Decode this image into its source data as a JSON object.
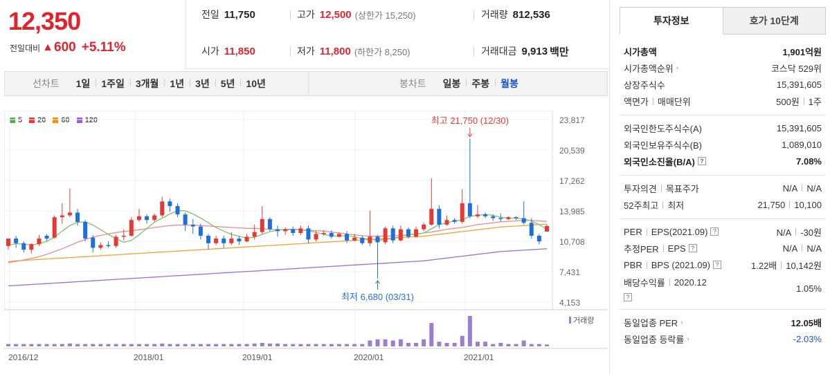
{
  "summary": {
    "price": "12,350",
    "change_label": "전일대비",
    "change_arrow": "▲",
    "change_value": "600",
    "change_pct": "+5.11%"
  },
  "info": {
    "prev_label": "전일",
    "prev_val": "11,750",
    "high_label": "고가",
    "high_val": "12,500",
    "high_sub": "(상한가 15,250)",
    "vol_label": "거래량",
    "vol_val": "812,536",
    "open_label": "시가",
    "open_val": "11,850",
    "low_label": "저가",
    "low_val": "11,800",
    "low_sub": "(하한가 8,250)",
    "amt_label": "거래대금",
    "amt_val": "9,913",
    "amt_unit": "백만"
  },
  "toolbar": {
    "line_title": "선차트",
    "line_items": [
      "1일",
      "1주일",
      "3개월",
      "1년",
      "3년",
      "5년",
      "10년"
    ],
    "candle_title": "봉차트",
    "candle_items": [
      "일봉",
      "주봉",
      "월봉"
    ],
    "candle_active": 2
  },
  "legend": [
    {
      "label": "5",
      "color": "#4caf50"
    },
    {
      "label": "20",
      "color": "#e53935"
    },
    {
      "label": "60",
      "color": "#fb8c00"
    },
    {
      "label": "120",
      "color": "#9c5ad6"
    }
  ],
  "chart_data": {
    "type": "candlestick",
    "y_ticks": [
      "23,817",
      "20,539",
      "17,262",
      "13,985",
      "10,708",
      "7,431",
      "4,153"
    ],
    "x_ticks": [
      "2016/12",
      "2018/01",
      "2019/01",
      "2020/01",
      "2021/01"
    ],
    "volume_label": "거래량",
    "max_label": "최고 21,750 (12/30)",
    "min_label": "최저 6,680 (03/31)",
    "candles": [
      [
        10200,
        11000,
        9800,
        11000
      ],
      [
        11000,
        10500,
        10000,
        11300
      ],
      [
        10500,
        9800,
        9500,
        10700
      ],
      [
        9800,
        10400,
        9400,
        10500
      ],
      [
        10400,
        11000,
        10200,
        11400
      ],
      [
        11300,
        11000,
        10700,
        11500
      ],
      [
        11100,
        13300,
        11000,
        13500
      ],
      [
        13300,
        13500,
        12600,
        14800
      ],
      [
        13500,
        13800,
        13300,
        16400
      ],
      [
        13800,
        12800,
        12400,
        14200
      ],
      [
        12800,
        11000,
        10700,
        13000
      ],
      [
        11100,
        10000,
        9500,
        11400
      ],
      [
        10000,
        10300,
        9800,
        10600
      ],
      [
        10300,
        10200,
        10000,
        10700
      ],
      [
        10200,
        11200,
        10000,
        11400
      ],
      [
        11200,
        11300,
        10800,
        12000
      ],
      [
        11300,
        13000,
        11200,
        13300
      ],
      [
        13000,
        13400,
        12800,
        14200
      ],
      [
        13400,
        13000,
        12600,
        13600
      ],
      [
        13000,
        13500,
        12800,
        13700
      ],
      [
        13500,
        15000,
        13300,
        15500
      ],
      [
        15000,
        14500,
        13900,
        15300
      ],
      [
        14500,
        13600,
        13300,
        14800
      ],
      [
        13600,
        12500,
        11800,
        13800
      ],
      [
        12500,
        12300,
        11500,
        13100
      ],
      [
        12300,
        11300,
        10900,
        12600
      ],
      [
        11300,
        10500,
        9800,
        11500
      ],
      [
        10500,
        11000,
        10300,
        11300
      ],
      [
        11000,
        10500,
        10000,
        11300
      ],
      [
        10500,
        11000,
        10300,
        11700
      ],
      [
        11000,
        10700,
        10300,
        11300
      ],
      [
        10700,
        11200,
        10600,
        11500
      ],
      [
        11200,
        11700,
        10900,
        12500
      ],
      [
        11700,
        13100,
        11500,
        14500
      ],
      [
        13100,
        12000,
        11800,
        13300
      ],
      [
        12000,
        11800,
        11200,
        12400
      ],
      [
        11800,
        12000,
        11400,
        12200
      ],
      [
        12000,
        11600,
        11300,
        12300
      ],
      [
        11600,
        12100,
        11400,
        12400
      ],
      [
        12100,
        10900,
        10500,
        12400
      ],
      [
        10900,
        11500,
        10700,
        11800
      ],
      [
        11500,
        11600,
        11300,
        11900
      ],
      [
        11600,
        11200,
        11000,
        11900
      ],
      [
        11200,
        11500,
        11100,
        11700
      ],
      [
        11500,
        10800,
        10500,
        11800
      ],
      [
        10800,
        11100,
        10700,
        11500
      ],
      [
        11100,
        10500,
        10300,
        11300
      ],
      [
        10500,
        11200,
        10200,
        14000
      ],
      [
        11200,
        10600,
        6680,
        11400
      ],
      [
        10600,
        12100,
        10400,
        12300
      ],
      [
        12100,
        10800,
        10500,
        12400
      ],
      [
        10800,
        12000,
        10700,
        12400
      ],
      [
        12000,
        11200,
        11000,
        12200
      ],
      [
        11200,
        12000,
        11100,
        12300
      ],
      [
        12000,
        12500,
        11800,
        12700
      ],
      [
        12500,
        14200,
        12400,
        17500
      ],
      [
        14200,
        12500,
        12100,
        14600
      ],
      [
        12500,
        13000,
        12400,
        13500
      ],
      [
        13000,
        12800,
        12600,
        13200
      ],
      [
        12800,
        14800,
        12600,
        16300
      ],
      [
        14800,
        13400,
        13200,
        21750
      ],
      [
        13400,
        13600,
        13200,
        14600
      ],
      [
        13600,
        13400,
        13200,
        13800
      ],
      [
        13400,
        13200,
        12900,
        13600
      ],
      [
        13200,
        13100,
        12800,
        13700
      ],
      [
        13100,
        13300,
        13000,
        13400
      ],
      [
        13300,
        13200,
        13000,
        13400
      ],
      [
        13200,
        12700,
        12500,
        15000
      ],
      [
        12700,
        11300,
        11000,
        13200
      ],
      [
        11300,
        10700,
        10400,
        11500
      ],
      [
        11750,
        12350,
        11800,
        12500
      ]
    ],
    "ma5": [
      10300,
      10450,
      10400,
      10300,
      10450,
      10700,
      11150,
      11800,
      12400,
      12750,
      12800,
      12450,
      11950,
      11450,
      11000,
      10600,
      10800,
      11400,
      12100,
      12750,
      13200,
      13650,
      14000,
      14000,
      13650,
      13200,
      12700,
      12200,
      11800,
      11450,
      11250,
      11050,
      11150,
      11450,
      11750,
      11900,
      12000,
      12000,
      11950,
      11850,
      11650,
      11450,
      11300,
      11250,
      11300,
      11200,
      11000,
      10950,
      10800,
      10900,
      11000,
      11250,
      11400,
      11450,
      11600,
      12050,
      12500,
      12700,
      12900,
      13000,
      13400,
      13500,
      13600,
      13500,
      13300,
      13200,
      13200,
      13100,
      12900,
      12500,
      12000
    ],
    "ma20": [
      8400,
      8550,
      8700,
      8850,
      9050,
      9300,
      9600,
      9900,
      10250,
      10600,
      10900,
      11150,
      11350,
      11500,
      11650,
      11750,
      11850,
      11950,
      12050,
      12200,
      12300,
      12400,
      12450,
      12450,
      12450,
      12400,
      12350,
      12300,
      12250,
      12200,
      12150,
      12100,
      12100,
      12050,
      12000,
      11950,
      11950,
      11950,
      11950,
      11900,
      11850,
      11800,
      11700,
      11600,
      11500,
      11400,
      11300,
      11250,
      11250,
      11250,
      11300,
      11350,
      11400,
      11500,
      11600,
      11700,
      11850,
      12000,
      12100,
      12200,
      12350,
      12500,
      12600,
      12700,
      12800,
      12850,
      12900,
      12950,
      12950,
      12900,
      12850
    ],
    "ma60": [
      8500,
      8600,
      8650,
      8700,
      8750,
      8800,
      8850,
      8900,
      8950,
      9000,
      9050,
      9100,
      9150,
      9200,
      9250,
      9300,
      9350,
      9400,
      9450,
      9500,
      9550,
      9600,
      9650,
      9700,
      9750,
      9800,
      9850,
      9900,
      9950,
      10000,
      10050,
      10100,
      10150,
      10200,
      10250,
      10300,
      10350,
      10400,
      10450,
      10500,
      10550,
      10600,
      10650,
      10700,
      10750,
      10800,
      10850,
      10900,
      10950,
      11000,
      11050,
      11100,
      11150,
      11200,
      11250,
      11350,
      11450,
      11550,
      11650,
      11750,
      11850,
      11950,
      12050,
      12150,
      12250,
      12300,
      12350,
      12400,
      12450,
      12500,
      12550
    ],
    "ma120": [
      5900,
      5950,
      6000,
      6050,
      6100,
      6150,
      6200,
      6250,
      6300,
      6350,
      6400,
      6450,
      6500,
      6550,
      6600,
      6650,
      6700,
      6750,
      6800,
      6850,
      6900,
      6950,
      7000,
      7050,
      7100,
      7150,
      7200,
      7250,
      7300,
      7350,
      7400,
      7450,
      7500,
      7550,
      7600,
      7650,
      7700,
      7750,
      7800,
      7850,
      7900,
      7950,
      8000,
      8050,
      8100,
      8150,
      8200,
      8250,
      8300,
      8350,
      8400,
      8450,
      8500,
      8550,
      8600,
      8700,
      8800,
      8900,
      9000,
      9100,
      9200,
      9300,
      9400,
      9500,
      9600,
      9650,
      9700,
      9750,
      9800,
      9850,
      9900
    ],
    "volume": [
      0.1,
      0.1,
      0.1,
      0.1,
      0.1,
      0.1,
      0.1,
      0.1,
      0.12,
      0.1,
      0.1,
      0.1,
      0.1,
      0.1,
      0.1,
      0.1,
      0.1,
      0.1,
      0.1,
      0.1,
      0.12,
      0.1,
      0.1,
      0.1,
      0.1,
      0.1,
      0.1,
      0.1,
      0.1,
      0.1,
      0.1,
      0.1,
      0.12,
      0.15,
      0.12,
      0.12,
      0.1,
      0.1,
      0.1,
      0.1,
      0.1,
      0.1,
      0.1,
      0.1,
      0.1,
      0.1,
      0.1,
      0.25,
      0.3,
      0.3,
      0.25,
      0.3,
      0.15,
      0.15,
      0.3,
      1.0,
      0.2,
      0.15,
      0.15,
      0.45,
      1.3,
      0.2,
      0.2,
      0.1,
      0.15,
      0.1,
      0.1,
      0.25,
      0.1,
      0.1,
      0.08
    ]
  },
  "panel": {
    "tab_active": "투자정보",
    "tab_other": "호가 10단계",
    "sec1": [
      {
        "k": "시가총액",
        "v": "1,901억원",
        "kbold": true,
        "vbold": true
      },
      {
        "k": "시가총액순위",
        "v": "코스닥 529위",
        "chev": true
      },
      {
        "k": "상장주식수",
        "v": "15,391,605"
      },
      {
        "k": "액면가",
        "k2": "매매단위",
        "v": "500원",
        "v2": "1주"
      }
    ],
    "sec2": [
      {
        "k": "외국인한도주식수(A)",
        "v": "15,391,605"
      },
      {
        "k": "외국인보유주식수(B)",
        "v": "1,089,010"
      },
      {
        "k": "외국인소진율(B/A)",
        "v": "7.08%",
        "kbold": true,
        "vbold": true,
        "q": true
      }
    ],
    "sec3": [
      {
        "k": "투자의견",
        "k2": "목표주가",
        "v": "N/A",
        "v2": "N/A"
      },
      {
        "k": "52주최고",
        "k2": "최저",
        "v": "21,750",
        "v2": "10,100"
      }
    ],
    "sec4": [
      {
        "k": "PER",
        "k2": "EPS(2021.09)",
        "v": "N/A",
        "v2": "-30원",
        "q": true
      },
      {
        "k": "추정PER",
        "k2": "EPS",
        "v": "N/A",
        "v2": "N/A",
        "q": true
      },
      {
        "k": "PBR",
        "k2": "BPS (2021.09)",
        "v": "1.22배",
        "v2": "10,142원",
        "q": true
      },
      {
        "k": "배당수익률",
        "k2": "2020.12",
        "v": "1.05%",
        "qnext": true
      }
    ],
    "sec5": [
      {
        "k": "동일업종 PER",
        "v": "12.05배",
        "vbold": true,
        "chev": true
      },
      {
        "k": "동일업종 등락률",
        "v": "-2.03%",
        "blue": true,
        "chev": true
      }
    ]
  }
}
